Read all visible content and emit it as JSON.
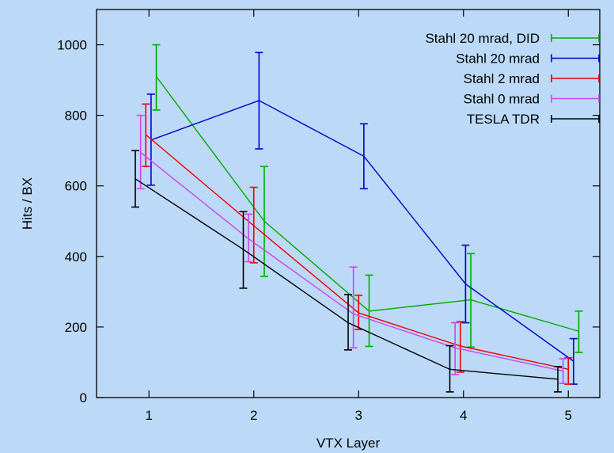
{
  "chart_data": {
    "type": "line",
    "xlabel": "VTX Layer",
    "ylabel": "Hits / BX",
    "xlim": [
      0.5,
      5.3
    ],
    "ylim": [
      0,
      1100
    ],
    "xticks": [
      1,
      2,
      3,
      4,
      5
    ],
    "yticks": [
      0,
      200,
      400,
      600,
      800,
      1000
    ],
    "grid": false,
    "legend_position": "top-right",
    "series": [
      {
        "name": "Stahl 20 mrad, DID",
        "color": "#00aa00",
        "points": [
          {
            "x": 1.07,
            "y": 910,
            "err_low": 815,
            "err_high": 1000
          },
          {
            "x": 2.1,
            "y": 500,
            "err_low": 343,
            "err_high": 655
          },
          {
            "x": 3.1,
            "y": 245,
            "err_low": 145,
            "err_high": 347
          },
          {
            "x": 4.07,
            "y": 277,
            "err_low": 143,
            "err_high": 408
          },
          {
            "x": 5.1,
            "y": 188,
            "err_low": 128,
            "err_high": 245
          }
        ]
      },
      {
        "name": "Stahl 20 mrad",
        "color": "#0000cc",
        "points": [
          {
            "x": 1.02,
            "y": 730,
            "err_low": 602,
            "err_high": 860
          },
          {
            "x": 2.05,
            "y": 842,
            "err_low": 705,
            "err_high": 978
          },
          {
            "x": 3.05,
            "y": 684,
            "err_low": 592,
            "err_high": 776
          },
          {
            "x": 4.02,
            "y": 322,
            "err_low": 212,
            "err_high": 432
          },
          {
            "x": 5.05,
            "y": 103,
            "err_low": 38,
            "err_high": 167
          }
        ]
      },
      {
        "name": "Stahl 2 mrad",
        "color": "#ee0000",
        "points": [
          {
            "x": 0.97,
            "y": 745,
            "err_low": 655,
            "err_high": 832
          },
          {
            "x": 2.0,
            "y": 487,
            "err_low": 382,
            "err_high": 596
          },
          {
            "x": 3.0,
            "y": 240,
            "err_low": 193,
            "err_high": 290
          },
          {
            "x": 3.97,
            "y": 146,
            "err_low": 72,
            "err_high": 215
          },
          {
            "x": 5.0,
            "y": 80,
            "err_low": 38,
            "err_high": 113
          }
        ]
      },
      {
        "name": "Stahl 0 mrad",
        "color": "#cc44ee",
        "points": [
          {
            "x": 0.92,
            "y": 695,
            "err_low": 592,
            "err_high": 800
          },
          {
            "x": 1.95,
            "y": 450,
            "err_low": 385,
            "err_high": 520
          },
          {
            "x": 2.95,
            "y": 237,
            "err_low": 141,
            "err_high": 370
          },
          {
            "x": 3.92,
            "y": 141,
            "err_low": 65,
            "err_high": 212
          },
          {
            "x": 4.95,
            "y": 75,
            "err_low": 40,
            "err_high": 110
          }
        ]
      },
      {
        "name": "TESLA TDR",
        "color": "#000000",
        "points": [
          {
            "x": 0.87,
            "y": 620,
            "err_low": 540,
            "err_high": 700
          },
          {
            "x": 1.9,
            "y": 420,
            "err_low": 310,
            "err_high": 527
          },
          {
            "x": 2.9,
            "y": 212,
            "err_low": 135,
            "err_high": 292
          },
          {
            "x": 3.87,
            "y": 80,
            "err_low": 16,
            "err_high": 147
          },
          {
            "x": 4.9,
            "y": 52,
            "err_low": 16,
            "err_high": 88
          }
        ]
      }
    ]
  }
}
